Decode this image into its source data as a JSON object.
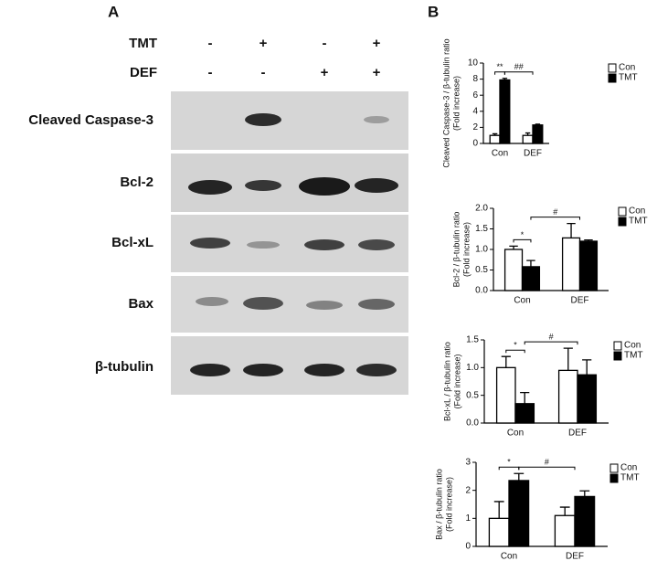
{
  "panel_a_label": "A",
  "panel_b_label": "B",
  "blot": {
    "conditions": [
      {
        "name": "TMT",
        "signs": [
          "-",
          "+",
          "-",
          "+"
        ]
      },
      {
        "name": "DEF",
        "signs": [
          "-",
          "-",
          "+",
          "+"
        ]
      }
    ],
    "proteins": [
      "Cleaved Caspase-3",
      "Bcl-2",
      "Bcl-xL",
      "Bax",
      "β-tubulin"
    ]
  },
  "chart_data": [
    {
      "type": "bar",
      "ylabel": [
        "Cleaved Caspase-3 / β-tubulin ratio",
        "(Fold increase)"
      ],
      "categories": [
        "Con",
        "DEF"
      ],
      "series": [
        {
          "name": "Con",
          "color": "#ffffff",
          "values": [
            1.0,
            1.0
          ],
          "errors": [
            0.2,
            0.3
          ]
        },
        {
          "name": "TMT",
          "color": "#000000",
          "values": [
            7.9,
            2.3
          ],
          "errors": [
            0.2,
            0.1
          ]
        }
      ],
      "ylim": [
        0,
        10
      ],
      "yticks": [
        0,
        2,
        4,
        6,
        8,
        10
      ],
      "annotations": [
        "**",
        "##"
      ]
    },
    {
      "type": "bar",
      "ylabel": [
        "Bcl-2 / β-tubulin ratio",
        "(Fold increase)"
      ],
      "categories": [
        "Con",
        "DEF"
      ],
      "series": [
        {
          "name": "Con",
          "color": "#ffffff",
          "values": [
            1.0,
            1.28
          ],
          "errors": [
            0.08,
            0.35
          ]
        },
        {
          "name": "TMT",
          "color": "#000000",
          "values": [
            0.58,
            1.2
          ],
          "errors": [
            0.15,
            0.03
          ]
        }
      ],
      "ylim": [
        0,
        2
      ],
      "yticks": [
        {
          "value": 0,
          "label": "0.0"
        },
        {
          "value": 0.5,
          "label": "0.5"
        },
        {
          "value": 1,
          "label": "1.0"
        },
        {
          "value": 1.5,
          "label": "1.5"
        },
        {
          "value": 2,
          "label": "2.0"
        }
      ],
      "annotations": [
        "*",
        "#"
      ]
    },
    {
      "type": "bar",
      "ylabel": [
        "Bcl-xL / β-tubulin ratio",
        "(Fold increase)"
      ],
      "categories": [
        "Con",
        "DEF"
      ],
      "series": [
        {
          "name": "Con",
          "color": "#ffffff",
          "values": [
            1.0,
            0.95
          ],
          "errors": [
            0.2,
            0.4
          ]
        },
        {
          "name": "TMT",
          "color": "#000000",
          "values": [
            0.35,
            0.87
          ],
          "errors": [
            0.2,
            0.27
          ]
        }
      ],
      "ylim": [
        0,
        1.5
      ],
      "yticks": [
        {
          "value": 0,
          "label": "0.0"
        },
        {
          "value": 0.5,
          "label": "0.5"
        },
        {
          "value": 1,
          "label": "1.0"
        },
        {
          "value": 1.5,
          "label": "1.5"
        }
      ],
      "annotations": [
        "*",
        "#"
      ]
    },
    {
      "type": "bar",
      "ylabel": [
        "Bax / β-tubulin ratio",
        "(Fold increase)"
      ],
      "categories": [
        "Con",
        "DEF"
      ],
      "series": [
        {
          "name": "Con",
          "color": "#ffffff",
          "values": [
            1.0,
            1.1
          ],
          "errors": [
            0.6,
            0.3
          ]
        },
        {
          "name": "TMT",
          "color": "#000000",
          "values": [
            2.35,
            1.78
          ],
          "errors": [
            0.25,
            0.2
          ]
        }
      ],
      "ylim": [
        0,
        3
      ],
      "yticks": [
        0,
        1,
        2,
        3
      ],
      "annotations": [
        "*",
        "#"
      ]
    }
  ]
}
